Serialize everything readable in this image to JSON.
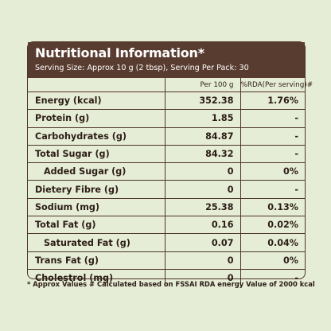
{
  "panel": {
    "title": "Nutritional Information*",
    "serving": "Serving Size: Approx 10 g (2 tbsp), Serving Per Pack: 30"
  },
  "table": {
    "headers": [
      "",
      "Per 100 g",
      "%RDA(Per serving)#"
    ],
    "rows": [
      {
        "name": "Energy (kcal)",
        "per100": "352.38",
        "rda": "1.76%"
      },
      {
        "name": "Protein (g)",
        "per100": "1.85",
        "rda": "-"
      },
      {
        "name": "Carbohydrates (g)",
        "per100": "84.87",
        "rda": "-"
      },
      {
        "name": "Total Sugar (g)",
        "per100": "84.32",
        "rda": "-"
      },
      {
        "name": "Added Sugar (g)",
        "per100": "0",
        "rda": "0%"
      },
      {
        "name": "Dietery Fibre (g)",
        "per100": "0",
        "rda": "-"
      },
      {
        "name": "Sodium (mg)",
        "per100": "25.38",
        "rda": "0.13%"
      },
      {
        "name": "Total Fat (g)",
        "per100": "0.16",
        "rda": "0.02%"
      },
      {
        "name": "Saturated Fat (g)",
        "per100": "0.07",
        "rda": "0.04%"
      },
      {
        "name": "Trans Fat (g)",
        "per100": "0",
        "rda": "0%"
      },
      {
        "name": "Cholestrol (mg)",
        "per100": "0",
        "rda": "-"
      }
    ]
  },
  "footnote": "* Approx Values # Calculated based on FSSAI RDA energy Value of 2000 kcal",
  "colors": {
    "background": "#e6edd6",
    "header": "#593c30",
    "text": "#2b1d16"
  }
}
